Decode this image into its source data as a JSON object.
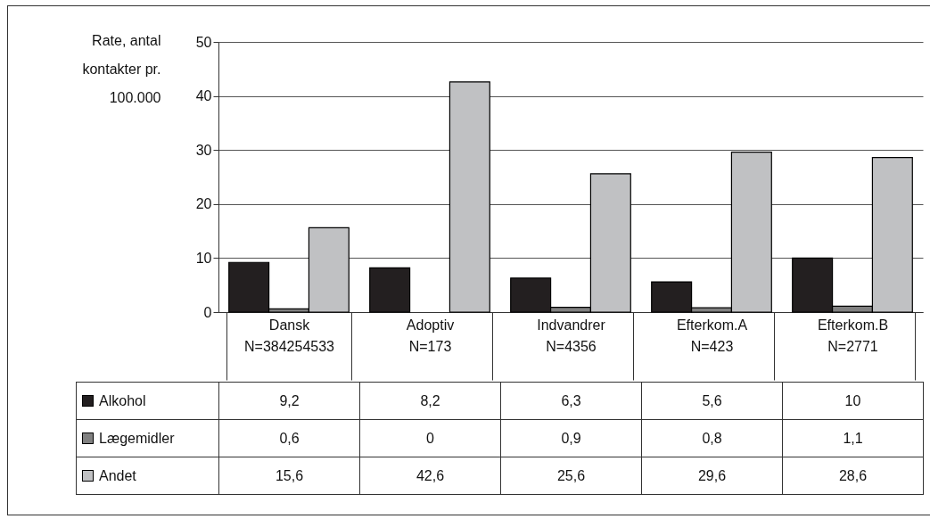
{
  "chart_data": {
    "type": "bar",
    "ylabel": "Rate, antal\nkontakter pr.\n100.000",
    "categories": [
      "Dansk\nN=384254533",
      "Adoptiv\nN=173",
      "Indvandrer\nN=4356",
      "Efterkom.A\nN=423",
      "Efterkom.B\nN=2771"
    ],
    "series": [
      {
        "name": "Alkohol",
        "color": "#231f20",
        "values": [
          9.2,
          8.2,
          6.3,
          5.6,
          10
        ],
        "value_labels": [
          "9,2",
          "8,2",
          "6,3",
          "5,6",
          "10"
        ]
      },
      {
        "name": "Lægemidler",
        "color": "#808080",
        "values": [
          0.6,
          0,
          0.9,
          0.8,
          1.1
        ],
        "value_labels": [
          "0,6",
          "0",
          "0,9",
          "0,8",
          "1,1"
        ]
      },
      {
        "name": "Andet",
        "color": "#c0c1c3",
        "values": [
          15.6,
          42.6,
          25.6,
          29.6,
          28.6
        ],
        "value_labels": [
          "15,6",
          "42,6",
          "25,6",
          "29,6",
          "28,6"
        ]
      }
    ],
    "ylim": [
      0,
      50
    ],
    "yticks": [
      0,
      10,
      20,
      30,
      40,
      50
    ],
    "grid": "y",
    "legend": "bottom left"
  }
}
